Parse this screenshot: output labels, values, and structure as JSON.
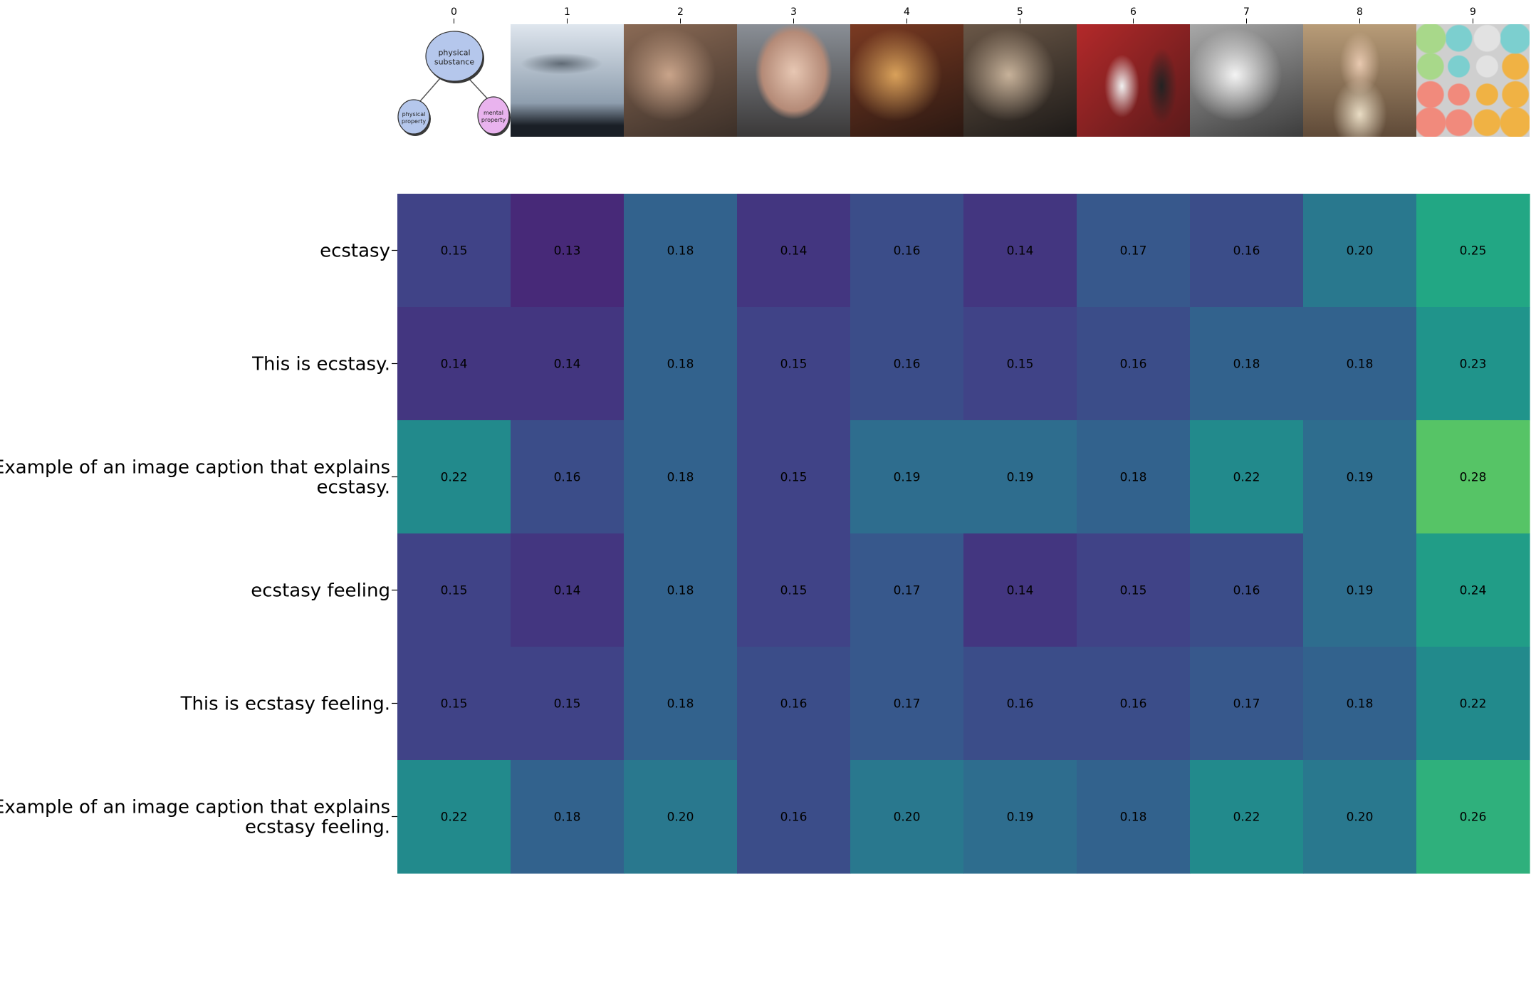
{
  "chart_data": {
    "type": "heatmap",
    "title": "",
    "xlabel": "",
    "ylabel": "",
    "colormap": "viridis",
    "color_range": [
      0.1,
      0.3
    ],
    "x_tick_labels": [
      "0",
      "1",
      "2",
      "3",
      "4",
      "5",
      "6",
      "7",
      "8",
      "9"
    ],
    "y_tick_labels": [
      "ecstasy",
      "This is ecstasy.",
      "Example of an image caption that explains ecstasy.",
      "ecstasy feeling",
      "This is ecstasy feeling.",
      "Example of an image caption that explains ecstasy feeling."
    ],
    "y_tick_lines": [
      [
        "ecstasy"
      ],
      [
        "This is ecstasy."
      ],
      [
        "Example of an image caption that explains",
        "ecstasy."
      ],
      [
        "ecstasy feeling"
      ],
      [
        "This is ecstasy feeling."
      ],
      [
        "Example of an image caption that explains",
        "ecstasy feeling."
      ]
    ],
    "values": [
      [
        0.15,
        0.13,
        0.18,
        0.14,
        0.16,
        0.14,
        0.17,
        0.16,
        0.2,
        0.25
      ],
      [
        0.14,
        0.14,
        0.18,
        0.15,
        0.16,
        0.15,
        0.16,
        0.18,
        0.18,
        0.23
      ],
      [
        0.22,
        0.16,
        0.18,
        0.15,
        0.19,
        0.19,
        0.18,
        0.22,
        0.19,
        0.28
      ],
      [
        0.15,
        0.14,
        0.18,
        0.15,
        0.17,
        0.14,
        0.15,
        0.16,
        0.19,
        0.24
      ],
      [
        0.15,
        0.15,
        0.18,
        0.16,
        0.17,
        0.16,
        0.16,
        0.17,
        0.18,
        0.22
      ],
      [
        0.22,
        0.18,
        0.2,
        0.16,
        0.2,
        0.19,
        0.18,
        0.22,
        0.2,
        0.26
      ]
    ],
    "column_images": [
      {
        "subject": "diagram",
        "node_labels": [
          "physical substance",
          "physical property",
          "mental property"
        ],
        "node_colors": [
          "#b5c7ec",
          "#b5c7ec",
          "#e9b3ee"
        ]
      },
      {
        "subject": "flock of birds in cloudy sky",
        "colors": [
          "#dfe6ee",
          "#8e9eae",
          "#1a1f26"
        ]
      },
      {
        "subject": "hand holding cloth",
        "colors": [
          "#c9a48a",
          "#8a6a55",
          "#3b2f28"
        ]
      },
      {
        "subject": "man's face close-up",
        "colors": [
          "#e7c7b3",
          "#b48a77",
          "#3a3838"
        ]
      },
      {
        "subject": "classical painting of figures",
        "colors": [
          "#d9a15a",
          "#7a3a22",
          "#2a1812"
        ]
      },
      {
        "subject": "dark painting of figures",
        "colors": [
          "#c7b29a",
          "#6a5747",
          "#1d1a18"
        ]
      },
      {
        "subject": "two people against red wall",
        "colors": [
          "#f1f1f1",
          "#b3292a",
          "#5a1a1a"
        ]
      },
      {
        "subject": "black and white sketch",
        "colors": [
          "#f4f4f4",
          "#a8a8a8",
          "#3c3c3c"
        ]
      },
      {
        "subject": "painting of a woman",
        "colors": [
          "#e9dcc4",
          "#b89c78",
          "#5f4a38"
        ]
      },
      {
        "subject": "colored pills",
        "colors": [
          "#a8d88a",
          "#7ccfcf",
          "#f18a7c",
          "#f0b244",
          "#e2e2e2"
        ]
      }
    ]
  }
}
